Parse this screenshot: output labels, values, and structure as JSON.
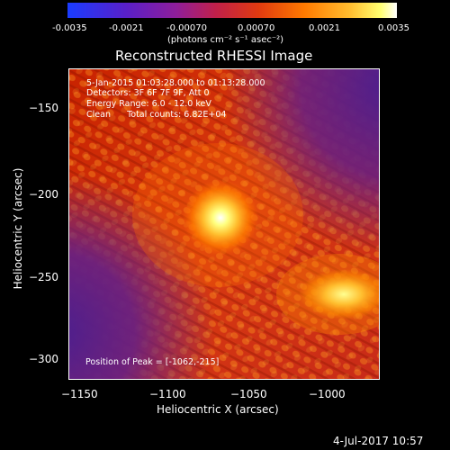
{
  "colorbar": {
    "ticks": [
      "-0.0035",
      "-0.0021",
      "-0.00070",
      "0.00070",
      "0.0021",
      "0.0035"
    ],
    "units": "(photons cm⁻² s⁻¹ asec⁻²)",
    "range": [
      -0.0035,
      0.0035
    ],
    "colors": [
      "#2040ff",
      "#6020c0",
      "#a02080",
      "#e03a10",
      "#ff8a00",
      "#ffff60",
      "#ffffff"
    ]
  },
  "image": {
    "title": "Reconstructed RHESSI Image",
    "annotations": {
      "time_range": "5-Jan-2015 01:03:28.000 to 01:13:28.000",
      "detectors": "Detectors: 3F 6F 7F 9F, Att 0",
      "energy_range": "Energy Range: 6.0 - 12.0 keV",
      "clean_counts": "Clean      Total counts: 6.82E+04",
      "peak_position": "Position of Peak = [-1062,-215]"
    },
    "x_axis": {
      "label": "Heliocentric X (arcsec)",
      "ticks": [
        "−1150",
        "−1100",
        "−1050",
        "−1000"
      ]
    },
    "y_axis": {
      "label": "Heliocentric Y (arcsec)",
      "ticks": [
        "−150",
        "−200",
        "−250",
        "−300"
      ]
    }
  },
  "footer": {
    "date": "4-Jul-2017 10:57"
  }
}
